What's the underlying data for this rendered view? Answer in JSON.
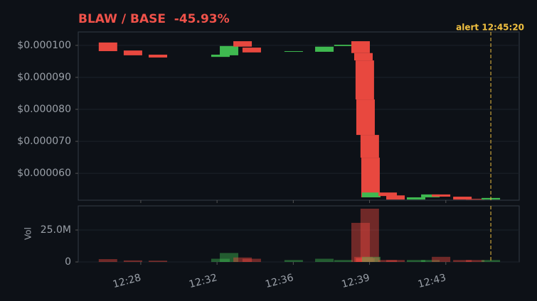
{
  "chart_data": {
    "type": "candlestick",
    "title": "BLAW / BASE  -45.93%",
    "title_color": "#f0524a",
    "up_color": "#3fb950",
    "down_color": "#e8483f",
    "grid": true,
    "x": [
      26.28,
      27.59,
      28.9,
      32.18,
      32.63,
      33.34,
      33.82,
      36.02,
      37.63,
      38.63,
      39.53,
      39.68,
      39.75,
      39.79,
      40.01,
      40.05,
      40.09,
      40.95,
      41.36,
      42.44,
      43.19,
      43.75,
      44.87,
      45.54,
      46.36
    ],
    "open": [
      0.0001009,
      9.84e-05,
      9.71e-05,
      9.64e-05,
      9.69e-05,
      0.0001013,
      9.93e-05,
      9.8e-05,
      9.8e-05,
      9.98e-05,
      0.0001013,
      9.76e-05,
      9.53e-05,
      8.31e-05,
      7.2e-05,
      6.49e-05,
      5.25e-05,
      5.4e-05,
      5.31e-05,
      5.18e-05,
      5.25e-05,
      5.34e-05,
      5.27e-05,
      5.2e-05,
      5.18e-05
    ],
    "close": [
      9.82e-05,
      9.69e-05,
      9.62e-05,
      9.71e-05,
      9.98e-05,
      9.96e-05,
      9.78e-05,
      9.82e-05,
      9.96e-05,
      0.0001002,
      9.76e-05,
      9.53e-05,
      8.31e-05,
      7.2e-05,
      6.49e-05,
      5.25e-05,
      5.4e-05,
      5.29e-05,
      5.18e-05,
      5.25e-05,
      5.34e-05,
      5.27e-05,
      5.18e-05,
      5.18e-05,
      5.23e-05
    ],
    "volume": [
      2200000,
      1200000,
      1000000,
      2500000,
      7000000,
      3500000,
      2500000,
      1500000,
      2500000,
      1500000,
      30600000,
      4000000,
      3000000,
      3000000,
      41700000,
      3500000,
      4000000,
      1500000,
      1500000,
      1500000,
      1500000,
      4000000,
      1500000,
      1500000,
      1500000
    ],
    "xlim": [
      24.72,
      47.85
    ],
    "xticks": [
      {
        "value": 28,
        "label": "12:28"
      },
      {
        "value": 32,
        "label": "12:32"
      },
      {
        "value": 36,
        "label": "12:36"
      },
      {
        "value": 40,
        "label": "12:39"
      },
      {
        "value": 44,
        "label": "12:43"
      }
    ],
    "ylim": [
      5.16e-05,
      0.0001042
    ],
    "yticks": [
      {
        "value": 6e-05,
        "label": "$0.000060"
      },
      {
        "value": 7e-05,
        "label": "$0.000070"
      },
      {
        "value": 8e-05,
        "label": "$0.000080"
      },
      {
        "value": 9e-05,
        "label": "$0.000090"
      },
      {
        "value": 0.0001,
        "label": "$0.000100"
      }
    ],
    "volume_label": "Vol",
    "volume_ylim": [
      0,
      43900000
    ],
    "volume_yticks": [
      0,
      {
        "value": 25000000,
        "label": "25.0M"
      }
    ],
    "annotations": [
      {
        "x": 46.36,
        "label": "alert 12:45:20",
        "color": "#f0c040"
      }
    ]
  }
}
